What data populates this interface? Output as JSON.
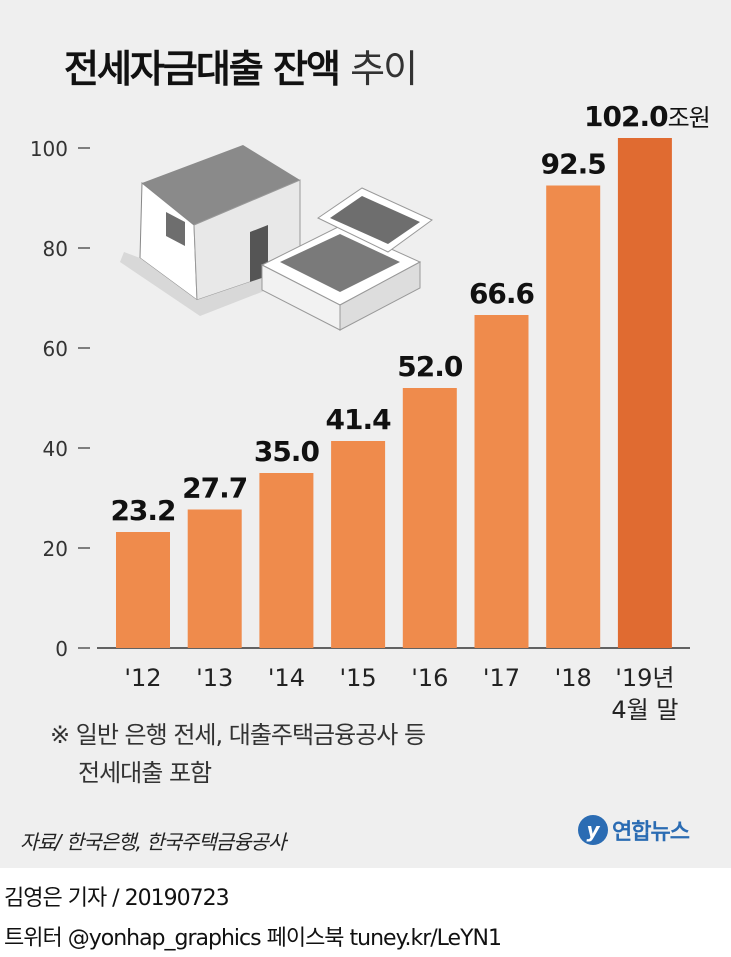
{
  "title": {
    "bold": "전세자금대출 잔액",
    "light": "추이"
  },
  "chart_data": {
    "type": "bar",
    "title": "전세자금대출 잔액 추이",
    "categories": [
      "'12",
      "'13",
      "'14",
      "'15",
      "'16",
      "'17",
      "'18",
      "'19년 4월 말"
    ],
    "category_lines": [
      [
        "'12"
      ],
      [
        "'13"
      ],
      [
        "'14"
      ],
      [
        "'15"
      ],
      [
        "'16"
      ],
      [
        "'17"
      ],
      [
        "'18"
      ],
      [
        "'19년",
        "4월 말"
      ]
    ],
    "values": [
      23.2,
      27.7,
      35.0,
      41.4,
      52.0,
      66.6,
      92.5,
      102.0
    ],
    "value_labels": [
      "23.2",
      "27.7",
      "35.0",
      "41.4",
      "52.0",
      "66.6",
      "92.5",
      "102.0"
    ],
    "unit": "조원",
    "yticks": [
      "0",
      "20",
      "40",
      "60",
      "80",
      "100"
    ],
    "ylim": [
      0,
      100
    ],
    "grid": false,
    "colors": {
      "bar": "#ef8b4c",
      "highlight": "#e06b31",
      "axis": "#333333"
    }
  },
  "note": {
    "line1": "※ 일반 은행 전세, 대출주택금융공사 등",
    "line2": "전세대출 포함"
  },
  "source": "자료/ 한국은행, 한국주택금융공사",
  "logo": {
    "mark": "y",
    "name": "연합뉴스",
    "color": "#2b6cb3"
  },
  "byline": "김영은 기자 / 20190723",
  "social": "트위터 @yonhap_graphics  페이스북 tuney.kr/LeYN1",
  "icons": [
    "house-icon",
    "money-stack-icon"
  ]
}
